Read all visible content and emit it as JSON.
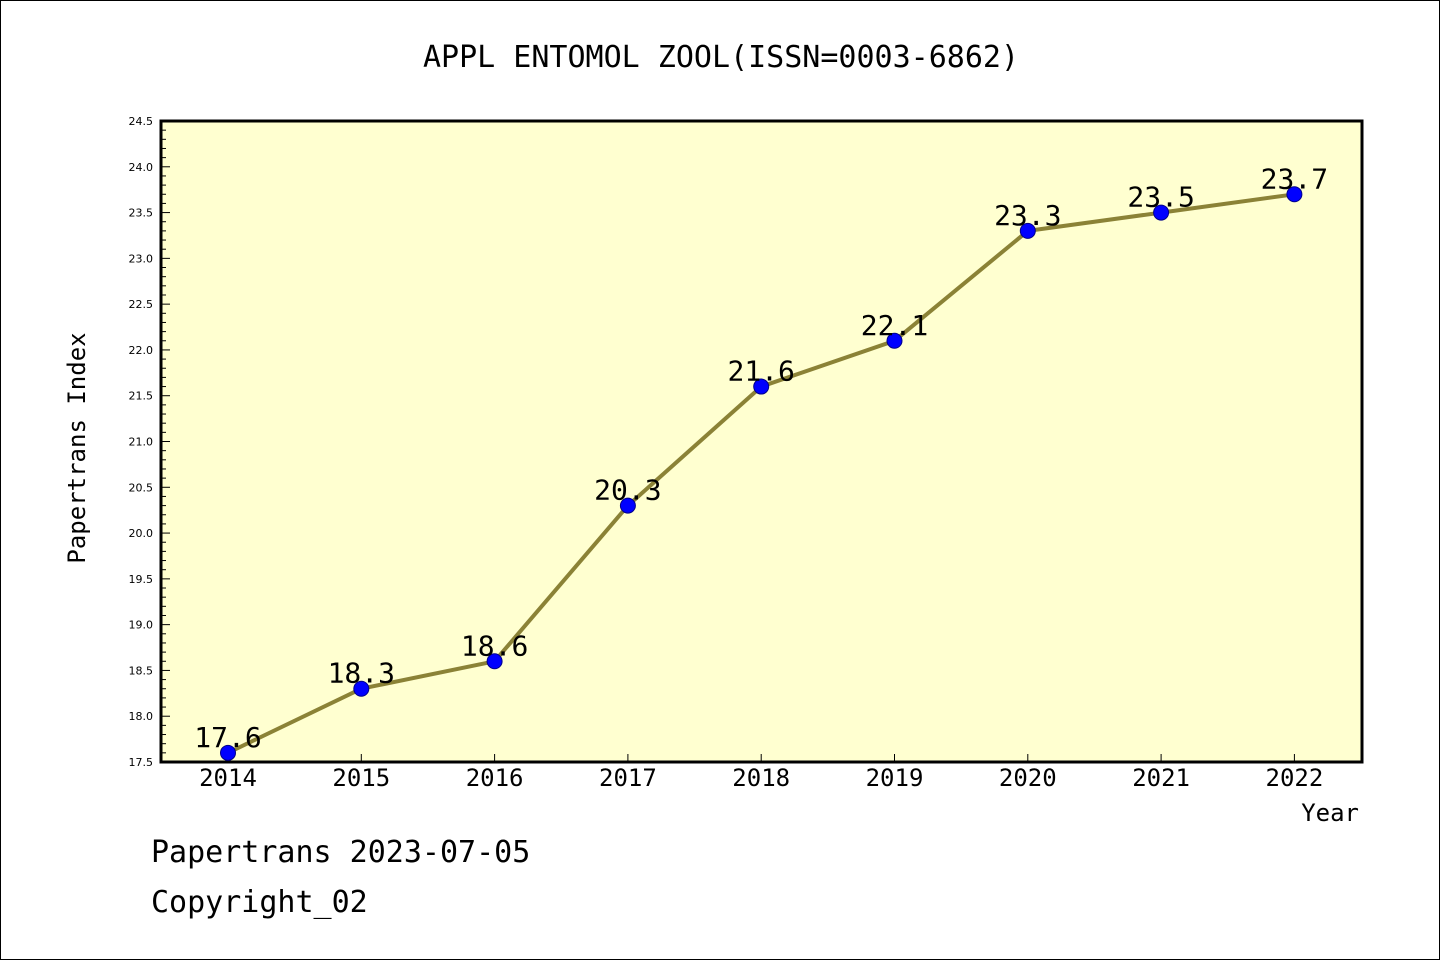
{
  "chart_data": {
    "type": "line",
    "title": "APPL ENTOMOL ZOOL(ISSN=0003-6862)",
    "xlabel": "Year",
    "ylabel": "Papertrans Index",
    "categories": [
      "2014",
      "2015",
      "2016",
      "2017",
      "2018",
      "2019",
      "2020",
      "2021",
      "2022"
    ],
    "values": [
      17.6,
      18.3,
      18.6,
      20.3,
      21.6,
      22.1,
      23.3,
      23.5,
      23.7
    ],
    "data_labels": [
      "17.6",
      "18.3",
      "18.6",
      "20.3",
      "21.6",
      "22.1",
      "23.3",
      "23.5",
      "23.7"
    ],
    "ylim": [
      17.5,
      24.5
    ],
    "yticks": [
      "17.5",
      "18.0",
      "18.5",
      "19.0",
      "19.5",
      "20.0",
      "20.5",
      "21.0",
      "21.5",
      "22.0",
      "22.5",
      "23.0",
      "23.5",
      "24.0",
      "24.5"
    ],
    "grid": false,
    "legend": "none",
    "colors": {
      "plot_background": "#ffffd0",
      "line": "#8b8236",
      "marker": "#0000ff",
      "axis": "#000000"
    }
  },
  "footer": {
    "source": "Papertrans 2023-07-05",
    "copyright": "Copyright_02"
  }
}
